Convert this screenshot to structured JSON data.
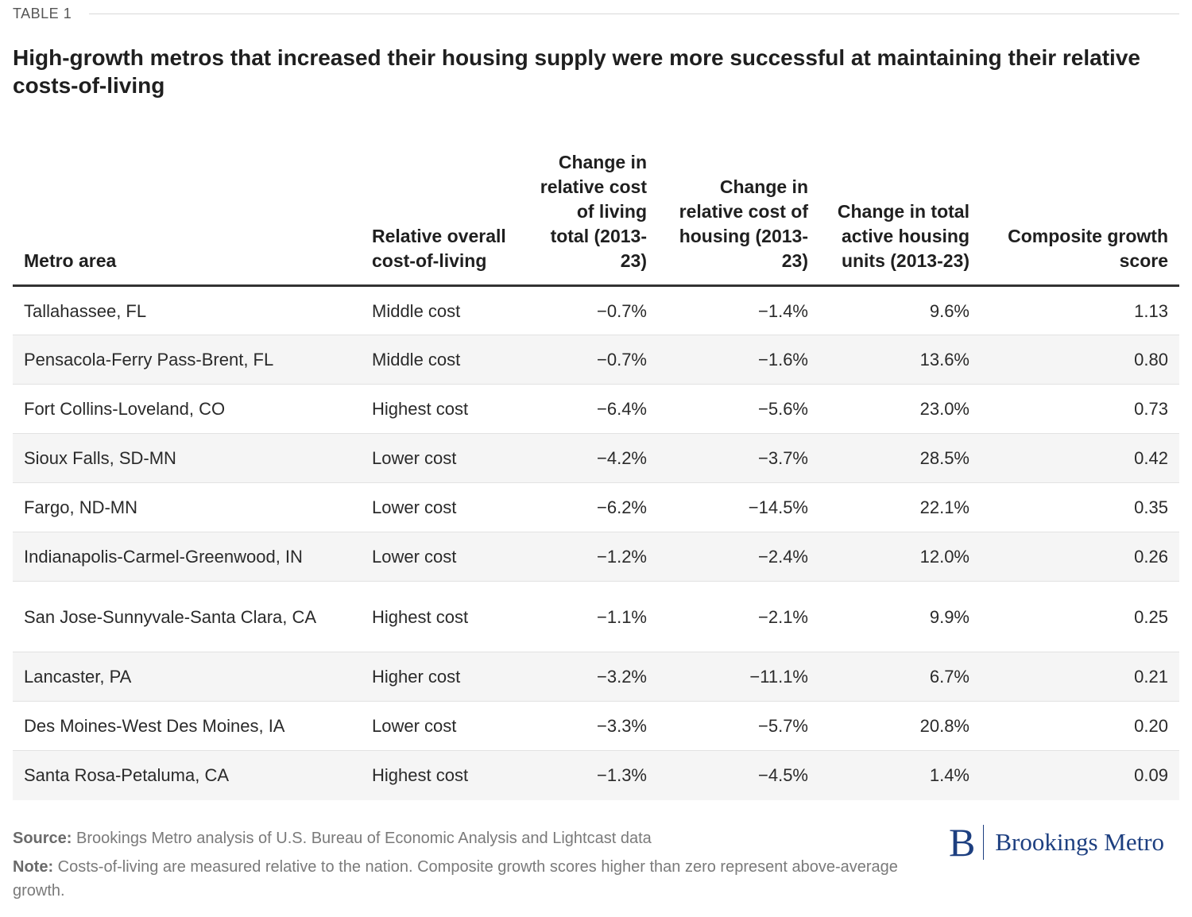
{
  "kicker": "TABLE 1",
  "title": "High-growth metros that increased their housing supply were more successful at maintaining their relative costs-of-living",
  "columns": [
    "Metro area",
    "Relative overall cost-of-living",
    "Change in relative cost of living total (2013-23)",
    "Change in relative cost of housing (2013-23)",
    "Change in total active housing units (2013-23)",
    "Composite growth score"
  ],
  "rows": [
    [
      "Tallahassee, FL",
      "Middle cost",
      "−0.7%",
      "−1.4%",
      "9.6%",
      "1.13"
    ],
    [
      "Pensacola-Ferry Pass-Brent, FL",
      "Middle cost",
      "−0.7%",
      "−1.6%",
      "13.6%",
      "0.80"
    ],
    [
      "Fort Collins-Loveland, CO",
      "Highest cost",
      "−6.4%",
      "−5.6%",
      "23.0%",
      "0.73"
    ],
    [
      "Sioux Falls, SD-MN",
      "Lower cost",
      "−4.2%",
      "−3.7%",
      "28.5%",
      "0.42"
    ],
    [
      "Fargo, ND-MN",
      "Lower cost",
      "−6.2%",
      "−14.5%",
      "22.1%",
      "0.35"
    ],
    [
      "Indianapolis-Carmel-Greenwood, IN",
      "Lower cost",
      "−1.2%",
      "−2.4%",
      "12.0%",
      "0.26"
    ],
    [
      "San Jose-Sunnyvale-Santa Clara, CA",
      "Highest cost",
      "−1.1%",
      "−2.1%",
      "9.9%",
      "0.25"
    ],
    [
      "Lancaster, PA",
      "Higher cost",
      "−3.2%",
      "−11.1%",
      "6.7%",
      "0.21"
    ],
    [
      "Des Moines-West Des Moines, IA",
      "Lower cost",
      "−3.3%",
      "−5.7%",
      "20.8%",
      "0.20"
    ],
    [
      "Santa Rosa-Petaluma, CA",
      "Highest cost",
      "−1.3%",
      "−4.5%",
      "1.4%",
      "0.09"
    ]
  ],
  "footer": {
    "source_label": "Source:",
    "source_text": "Brookings Metro analysis of U.S. Bureau of Economic Analysis and Lightcast data",
    "note_label": "Note:",
    "note_text": "Costs-of-living are measured relative to the nation. Composite growth scores higher than zero represent above-average growth."
  },
  "logo": {
    "mark": "B",
    "text": "Brookings Metro",
    "color": "#1d3f80"
  }
}
